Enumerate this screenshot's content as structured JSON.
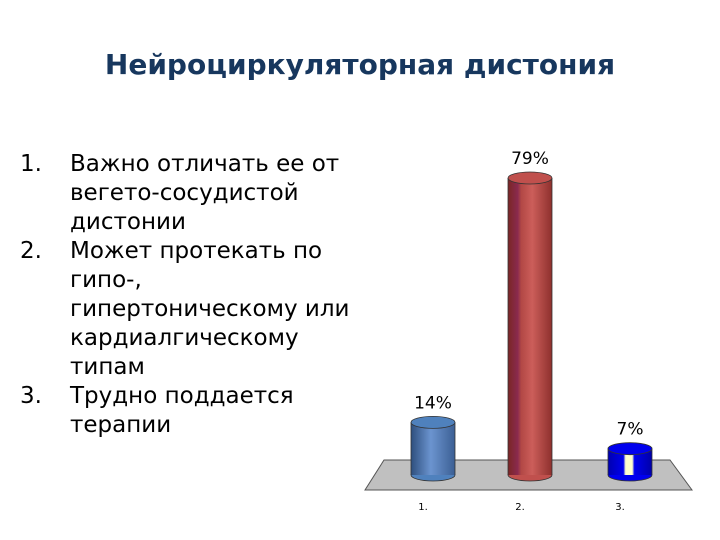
{
  "slide": {
    "title": "Нейроциркуляторная дистония",
    "items": [
      {
        "num": "1.",
        "text": "Важно отличать ее от вегето-сосудистой дистонии"
      },
      {
        "num": "2.",
        "text": "Может протекать по гипо-, гипертоническому или кардиалгическому типам"
      },
      {
        "num": "3.",
        "text": "Трудно поддается терапии"
      }
    ]
  },
  "chart_data": {
    "type": "bar",
    "categories": [
      "1.",
      "2.",
      "3."
    ],
    "values": [
      14,
      79,
      7
    ],
    "data_labels": [
      "14%",
      "79%",
      "7%"
    ],
    "colors": [
      "#4f81bd",
      "#c0504d",
      "#0000ee"
    ],
    "grid": false
  }
}
